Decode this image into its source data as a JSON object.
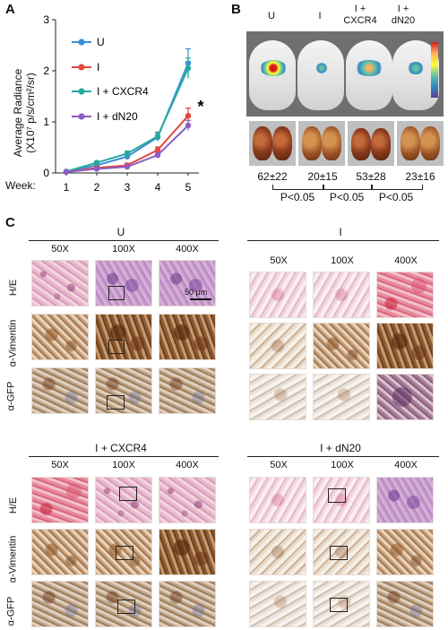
{
  "panels": {
    "a": "A",
    "b": "B",
    "c": "C"
  },
  "chart_data": {
    "type": "line",
    "ylabel_line1": "Average Radiance",
    "ylabel_line2": "(X10⁷ p/s/cm²/sr)",
    "xlabel": "Week:",
    "x": [
      1,
      2,
      3,
      4,
      5
    ],
    "ylim": [
      0,
      3
    ],
    "yticks": [
      "0",
      "1",
      "2",
      "3"
    ],
    "grid": false,
    "legend_position": "top-left",
    "series": [
      {
        "name": "U",
        "color": "#3a8fd6",
        "values": [
          0.03,
          0.15,
          0.32,
          0.7,
          2.15
        ],
        "errors": [
          0.01,
          0.03,
          0.05,
          0.08,
          0.28
        ]
      },
      {
        "name": "I",
        "color": "#e2473f",
        "values": [
          0.02,
          0.1,
          0.15,
          0.45,
          1.12
        ],
        "errors": [
          0.01,
          0.02,
          0.04,
          0.06,
          0.15
        ]
      },
      {
        "name": "I + CXCR4",
        "color": "#27a9a0",
        "values": [
          0.03,
          0.2,
          0.38,
          0.72,
          2.05
        ],
        "errors": [
          0.01,
          0.03,
          0.05,
          0.08,
          0.2
        ]
      },
      {
        "name": "I + dN20",
        "color": "#8f5cc2",
        "values": [
          0.02,
          0.08,
          0.12,
          0.35,
          0.93
        ],
        "errors": [
          0.01,
          0.02,
          0.03,
          0.05,
          0.1
        ]
      }
    ],
    "annotation": "*"
  },
  "panel_b": {
    "groups": [
      "U",
      "I",
      "I +\nCXCR4",
      "I +\ndN20"
    ],
    "group_lines": [
      [
        "U"
      ],
      [
        "I"
      ],
      [
        "I +",
        "CXCR4"
      ],
      [
        "I +",
        "dN20"
      ]
    ],
    "counts": [
      "62±22",
      "20±15",
      "53±28",
      "23±16"
    ],
    "pvalues": [
      "P<0.05",
      "P<0.05",
      "P<0.05"
    ],
    "colorbar_colors": [
      "#d7191c",
      "#fdae61",
      "#ffff33",
      "#66c2a5",
      "#3288bd",
      "#5e3c99"
    ]
  },
  "panel_c": {
    "magnifications": [
      "50X",
      "100X",
      "400X"
    ],
    "stains": [
      "H/E",
      "α-Vimentin",
      "α-GFP"
    ],
    "groups": {
      "u": "U",
      "i": "I",
      "cxcr4": "I + CXCR4",
      "dn20": "I + dN20"
    },
    "scale_label": "50 μm"
  }
}
